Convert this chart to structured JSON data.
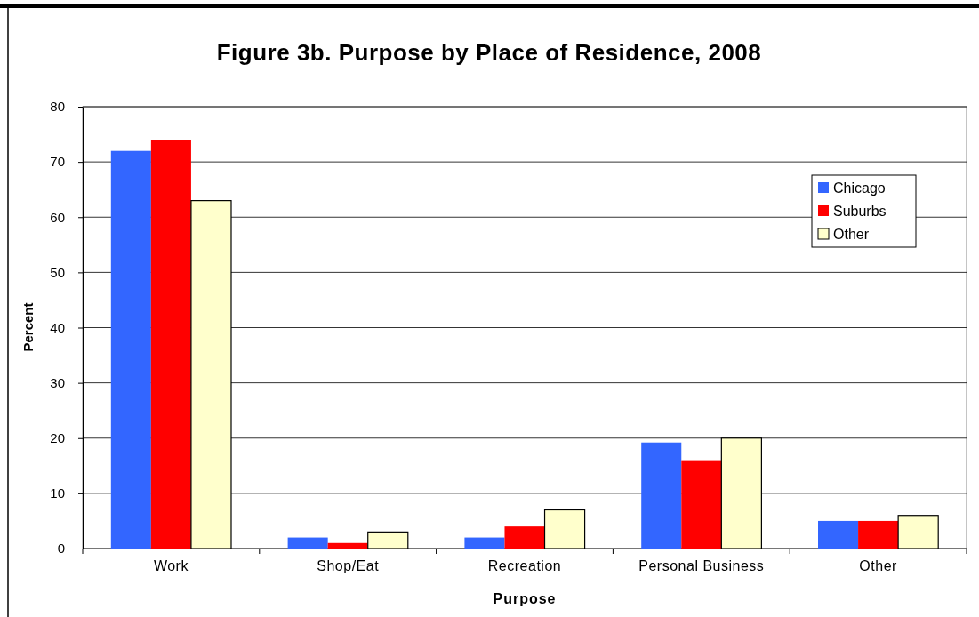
{
  "chart_data": {
    "type": "bar",
    "title": "Figure 3b.  Purpose by Place of Residence, 2008",
    "xlabel": "Purpose",
    "ylabel": "Percent",
    "categories": [
      "Work",
      "Shop/Eat",
      "Recreation",
      "Personal Business",
      "Other"
    ],
    "series": [
      {
        "name": "Chicago",
        "color": "#3366ff",
        "values": [
          72,
          2,
          2,
          19.2,
          5
        ]
      },
      {
        "name": "Suburbs",
        "color": "#ff0000",
        "values": [
          74,
          1,
          4,
          16,
          5
        ]
      },
      {
        "name": "Other",
        "color": "#ffffcc",
        "values": [
          63,
          3,
          7,
          20,
          6
        ]
      }
    ],
    "ylim": [
      0,
      80
    ],
    "yticks": [
      0,
      10,
      20,
      30,
      40,
      50,
      60,
      70,
      80
    ],
    "grid": "y",
    "legend": "top right"
  }
}
